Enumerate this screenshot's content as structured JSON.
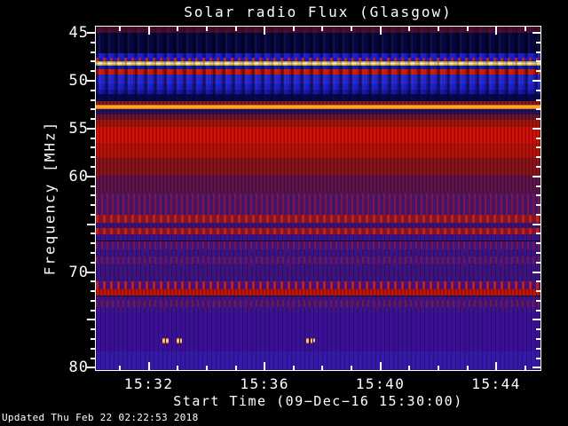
{
  "title": "Solar radio Flux (Glasgow)",
  "footer_updated": "Updated Thu Feb 22 02:22:53 2018",
  "x_axis": {
    "title": "Start Time (09−Dec−16 15:30:00)",
    "tick_labels": [
      "15:32",
      "15:36",
      "15:40",
      "15:44"
    ]
  },
  "y_axis": {
    "title": "Frequency [MHz]",
    "tick_labels": [
      "45",
      "50",
      "55",
      "60",
      "70",
      "80"
    ]
  },
  "chart_data": {
    "type": "heatmap",
    "title": "Solar radio Flux (Glasgow)",
    "xlabel": "Start Time (09-Dec-16 15:30:00)",
    "ylabel": "Frequency [MHz]",
    "time_view_min": [
      0.17,
      15.53
    ],
    "freq_view_mhz": [
      44.35,
      80.25
    ],
    "y_axis_inverted": true,
    "grid": false,
    "legend": "none",
    "x_major_ticks": [
      {
        "t_min": 2,
        "label": "15:32"
      },
      {
        "t_min": 6,
        "label": "15:36"
      },
      {
        "t_min": 10,
        "label": "15:40"
      },
      {
        "t_min": 14,
        "label": "15:44"
      }
    ],
    "x_minor_step_min": 1,
    "y_major_ticks_mhz": [
      45,
      50,
      55,
      60,
      65,
      70,
      75,
      80
    ],
    "y_labeled_ticks_mhz": [
      45,
      50,
      55,
      60,
      70,
      80
    ],
    "y_minor_step_mhz": 1,
    "palette_note": "blue = low flux, red/orange/yellow/white = high flux; periodic ~20 s vertical comb interference in 45-52 MHz range",
    "bands": [
      {
        "f_lo": 44.35,
        "f_hi": 44.95,
        "color": "#4a0d2c",
        "texture": "comb-faint",
        "note": "dark maroon band at top edge"
      },
      {
        "f_lo": 44.95,
        "f_hi": 47.15,
        "color": "#05053f",
        "texture": "comb"
      },
      {
        "f_lo": 47.15,
        "f_hi": 47.6,
        "color": "#1c1ccc",
        "texture": "comb"
      },
      {
        "f_lo": 47.6,
        "f_hi": 47.97,
        "color": "#1a1ac4",
        "texture": "dots-red"
      },
      {
        "f_lo": 47.97,
        "f_hi": 48.42,
        "color": [
          "#b08a0a",
          "#fff8c0",
          "#b08a0a"
        ],
        "texture": "comb-faint",
        "note": "bright yellow-white interference line ~48.2 MHz"
      },
      {
        "f_lo": 48.42,
        "f_hi": 48.8,
        "color": "#1414b2",
        "texture": "comb"
      },
      {
        "f_lo": 48.8,
        "f_hi": 49.38,
        "color": "#cc1a04",
        "texture": "comb",
        "note": "red interference band ~49 MHz"
      },
      {
        "f_lo": 49.38,
        "f_hi": 50.4,
        "color": "#2525cd",
        "texture": "comb"
      },
      {
        "f_lo": 50.4,
        "f_hi": 50.95,
        "color": "#1c1cc4",
        "texture": "comb"
      },
      {
        "f_lo": 50.95,
        "f_hi": 51.42,
        "color": "#14149e",
        "texture": "comb"
      },
      {
        "f_lo": 51.42,
        "f_hi": 52.15,
        "color": "#07074e",
        "texture": "comb-faint"
      },
      {
        "f_lo": 52.15,
        "f_hi": 52.52,
        "color": "#8a1a14",
        "texture": "stripes"
      },
      {
        "f_lo": 52.52,
        "f_hi": 52.99,
        "color": [
          "#e06008",
          "#ffc83c",
          "#d85a06"
        ],
        "texture": "none",
        "note": "bright orange line ~52.7 MHz"
      },
      {
        "f_lo": 52.99,
        "f_hi": 53.55,
        "color": "#25105a",
        "texture": "stripes"
      },
      {
        "f_lo": 53.55,
        "f_hi": 54.1,
        "color": "#6e1427",
        "texture": "stripes"
      },
      {
        "f_lo": 54.1,
        "f_hi": 54.85,
        "color": "#a51509",
        "texture": "stripes"
      },
      {
        "f_lo": 54.85,
        "f_hi": 56.5,
        "color": "#d41104",
        "texture": "stripes",
        "note": "brightest broad red band 55-56.5 MHz"
      },
      {
        "f_lo": 56.5,
        "f_hi": 58.1,
        "color": "#b91207",
        "texture": "stripes"
      },
      {
        "f_lo": 58.1,
        "f_hi": 59.95,
        "color": "#8c1418",
        "texture": "stripes"
      },
      {
        "f_lo": 59.95,
        "f_hi": 61.8,
        "color": "#5f134b",
        "texture": "stripes"
      },
      {
        "f_lo": 61.8,
        "f_hi": 64.0,
        "color": "#461367",
        "texture": "dots-red-faint"
      },
      {
        "f_lo": 64.0,
        "f_hi": 64.85,
        "color": "#7e1430",
        "texture": "dots-red",
        "note": "speckled red band ~64.4 MHz"
      },
      {
        "f_lo": 64.85,
        "f_hi": 65.4,
        "color": "#3f1273",
        "texture": "stripes"
      },
      {
        "f_lo": 65.4,
        "f_hi": 66.05,
        "color": "#7e1430",
        "texture": "dots-red",
        "note": "speckled red band ~65.7 MHz"
      },
      {
        "f_lo": 66.05,
        "f_hi": 66.75,
        "color": "#3c137c",
        "texture": "grain"
      },
      {
        "f_lo": 66.75,
        "f_hi": 67.6,
        "color": "#40137a",
        "texture": "dots-red-faint"
      },
      {
        "f_lo": 67.6,
        "f_hi": 68.35,
        "color": "#3b1380",
        "texture": "grain"
      },
      {
        "f_lo": 68.35,
        "f_hi": 69.1,
        "color": "#40137a",
        "texture": "dots-red-faint"
      },
      {
        "f_lo": 69.1,
        "f_hi": 70.95,
        "color": "#3c137c",
        "texture": "grain"
      },
      {
        "f_lo": 70.95,
        "f_hi": 71.85,
        "color": "#44127c",
        "texture": "dots-red",
        "note": "dashed red row ~71.4 MHz"
      },
      {
        "f_lo": 71.85,
        "f_hi": 72.5,
        "color": "#c21505",
        "texture": "stripes",
        "note": "narrow red line ~72.2 MHz"
      },
      {
        "f_lo": 72.5,
        "f_hi": 72.9,
        "color": "#3f1384",
        "texture": "grain"
      },
      {
        "f_lo": 72.9,
        "f_hi": 73.7,
        "color": "#40137a",
        "texture": "dots-red-faint"
      },
      {
        "f_lo": 73.7,
        "f_hi": 74.2,
        "color": "#3d1386",
        "texture": "grain"
      },
      {
        "f_lo": 74.2,
        "f_hi": 78.3,
        "color": "#390f95",
        "texture": "grain"
      },
      {
        "f_lo": 78.3,
        "f_hi": 80.25,
        "color": "#3219a8",
        "texture": "grain",
        "note": "bluer band at bottom edge"
      }
    ],
    "bursts": [
      {
        "t_min": 2.46,
        "f_mhz": 76.95,
        "bw_mhz": 0.55,
        "dur_s": 7
      },
      {
        "t_min": 2.6,
        "f_mhz": 76.95,
        "bw_mhz": 0.55,
        "dur_s": 5
      },
      {
        "t_min": 2.95,
        "f_mhz": 76.95,
        "bw_mhz": 0.55,
        "dur_s": 6
      },
      {
        "t_min": 3.08,
        "f_mhz": 76.95,
        "bw_mhz": 0.5,
        "dur_s": 4
      },
      {
        "t_min": 7.44,
        "f_mhz": 76.95,
        "bw_mhz": 0.55,
        "dur_s": 6
      },
      {
        "t_min": 7.58,
        "f_mhz": 76.95,
        "bw_mhz": 0.5,
        "dur_s": 4
      },
      {
        "t_min": 7.68,
        "f_mhz": 76.95,
        "bw_mhz": 0.45,
        "dur_s": 3
      }
    ]
  }
}
